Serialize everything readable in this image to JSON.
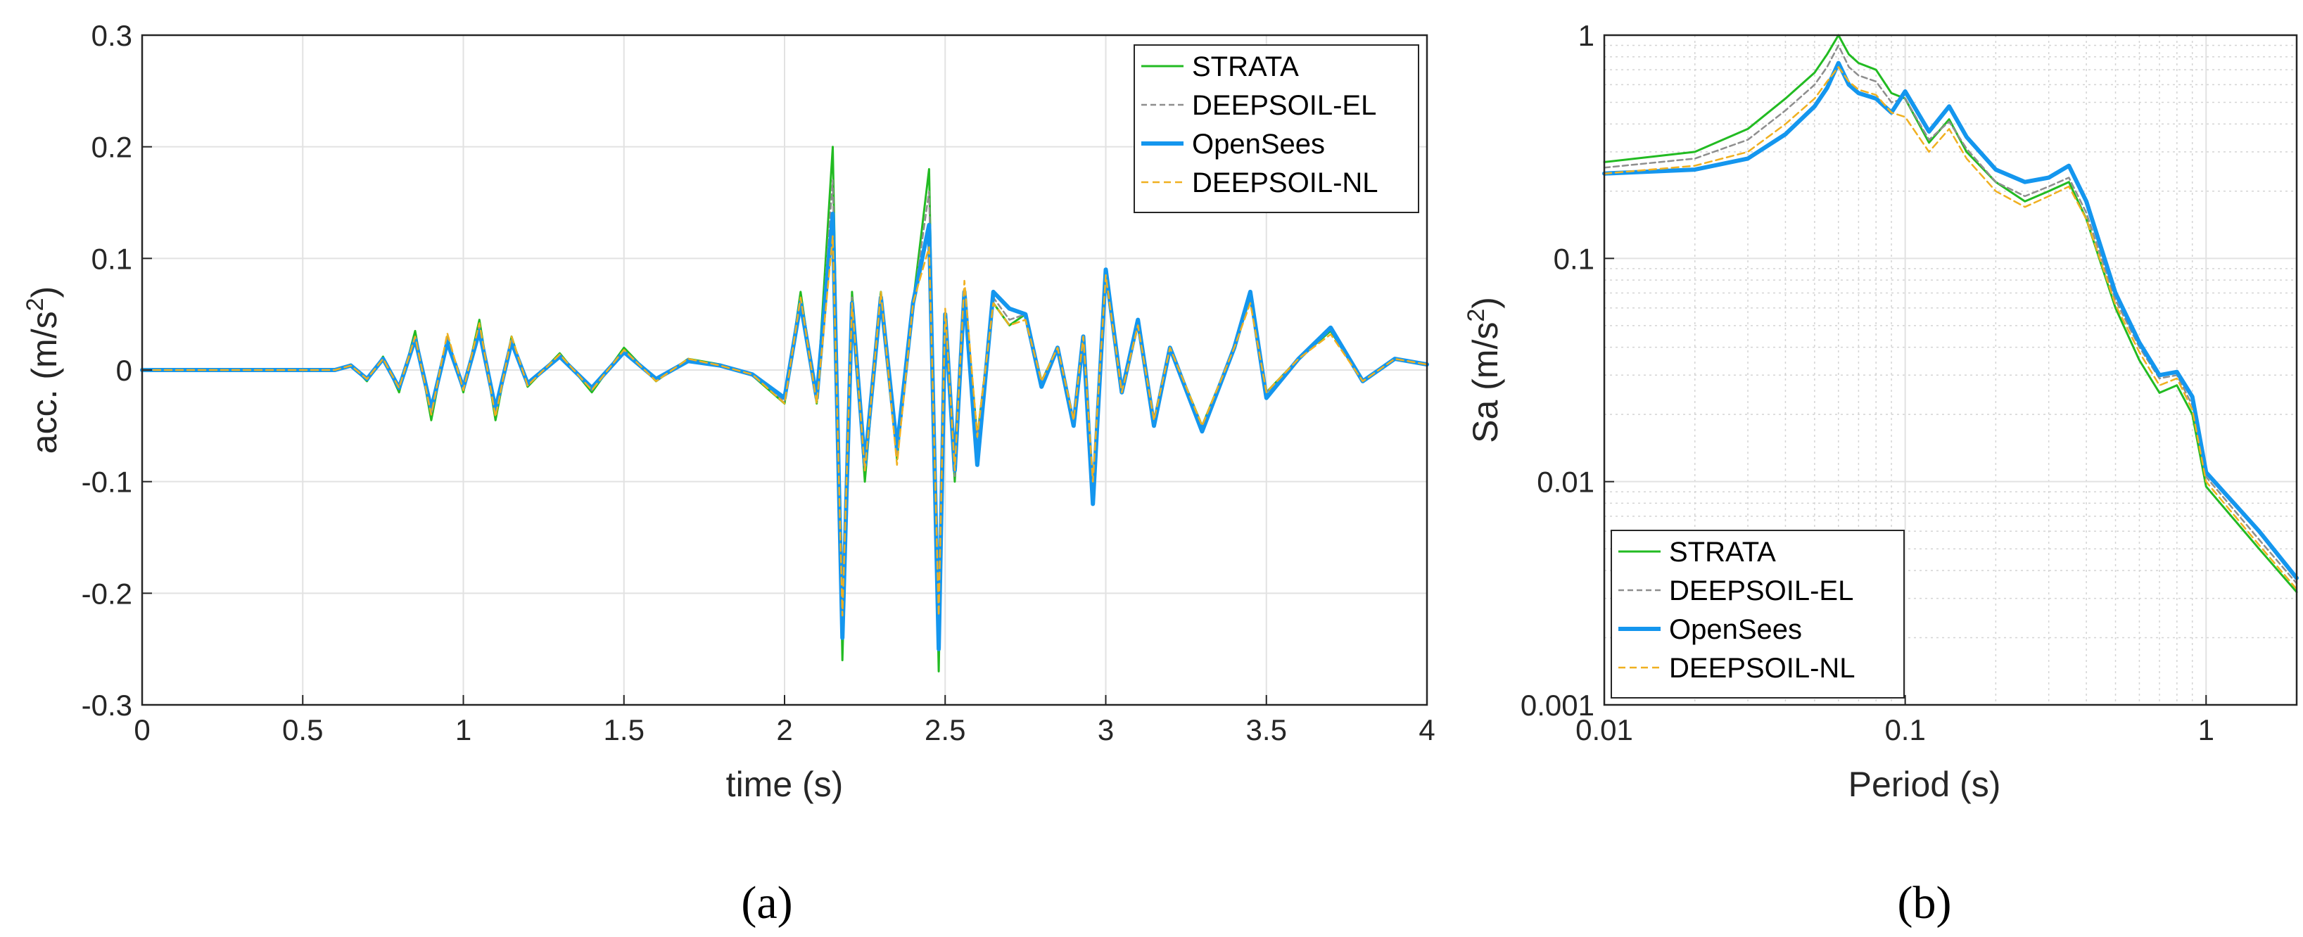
{
  "colors": {
    "STRATA": "#22bb22",
    "DEEPSOIL-EL": "#8e8e8e",
    "OpenSees": "#1496ee",
    "DEEPSOIL-NL": "#f0b020"
  },
  "captions": {
    "a": "(a)",
    "b": "(b)"
  },
  "chart_data": [
    {
      "id": "a",
      "type": "line",
      "title": "",
      "xlabel": "time (s)",
      "ylabel_prefix": "acc. (m/s",
      "ylabel_sup": "2",
      "ylabel_suffix": ")",
      "xlim": [
        0,
        4
      ],
      "ylim": [
        -0.3,
        0.3
      ],
      "xticks": [
        0,
        0.5,
        1,
        1.5,
        2,
        2.5,
        3,
        3.5,
        4
      ],
      "xtick_labels": [
        "0",
        "0.5",
        "1",
        "1.5",
        "2",
        "2.5",
        "3",
        "3.5",
        "4"
      ],
      "yticks": [
        0.3,
        0.2,
        0.1,
        0,
        -0.1,
        -0.2,
        -0.3
      ],
      "ytick_labels": [
        "0.3",
        "0.2",
        "0.1",
        "0",
        "-0.1",
        "-0.2",
        "-0.3"
      ],
      "grid": true,
      "legend_position": "top-right",
      "legend": [
        "STRATA",
        "DEEPSOIL-EL",
        "OpenSees",
        "DEEPSOIL-NL"
      ],
      "series": [
        {
          "name": "STRATA",
          "x": [
            0,
            0.6,
            0.65,
            0.7,
            0.75,
            0.8,
            0.85,
            0.9,
            0.95,
            1.0,
            1.05,
            1.1,
            1.15,
            1.2,
            1.3,
            1.4,
            1.5,
            1.6,
            1.7,
            1.8,
            1.9,
            2.0,
            2.05,
            2.1,
            2.15,
            2.18,
            2.21,
            2.25,
            2.3,
            2.35,
            2.4,
            2.45,
            2.48,
            2.5,
            2.53,
            2.56,
            2.6,
            2.65,
            2.7,
            2.75,
            2.8,
            2.85,
            2.9,
            2.93,
            2.96,
            3.0,
            3.05,
            3.1,
            3.15,
            3.2,
            3.3,
            3.4,
            3.45,
            3.5,
            3.6,
            3.7,
            3.8,
            3.9,
            4.0
          ],
          "values": [
            0,
            0,
            0.005,
            -0.01,
            0.012,
            -0.02,
            0.035,
            -0.045,
            0.03,
            -0.02,
            0.045,
            -0.045,
            0.03,
            -0.015,
            0.015,
            -0.02,
            0.02,
            -0.01,
            0.01,
            0.005,
            -0.005,
            -0.03,
            0.07,
            -0.03,
            0.2,
            -0.26,
            0.07,
            -0.1,
            0.07,
            -0.08,
            0.06,
            0.18,
            -0.27,
            0.05,
            -0.1,
            0.07,
            -0.06,
            0.06,
            0.04,
            0.05,
            -0.01,
            0.02,
            -0.05,
            0.03,
            -0.11,
            0.09,
            -0.02,
            0.04,
            -0.05,
            0.02,
            -0.05,
            0.02,
            0.065,
            -0.02,
            0.01,
            0.035,
            -0.01,
            0.01,
            0.005
          ]
        },
        {
          "name": "DEEPSOIL-EL",
          "x": [
            0,
            0.6,
            0.65,
            0.7,
            0.75,
            0.8,
            0.85,
            0.9,
            0.95,
            1.0,
            1.05,
            1.1,
            1.15,
            1.2,
            1.3,
            1.4,
            1.5,
            1.6,
            1.7,
            1.8,
            1.9,
            2.0,
            2.05,
            2.1,
            2.15,
            2.18,
            2.21,
            2.25,
            2.3,
            2.35,
            2.4,
            2.45,
            2.48,
            2.5,
            2.53,
            2.56,
            2.6,
            2.65,
            2.7,
            2.75,
            2.8,
            2.85,
            2.9,
            2.93,
            2.96,
            3.0,
            3.05,
            3.1,
            3.15,
            3.2,
            3.3,
            3.4,
            3.45,
            3.5,
            3.6,
            3.7,
            3.8,
            3.9,
            4.0
          ],
          "values": [
            0,
            0,
            0.004,
            -0.008,
            0.01,
            -0.018,
            0.03,
            -0.04,
            0.028,
            -0.018,
            0.04,
            -0.04,
            0.028,
            -0.014,
            0.014,
            -0.018,
            0.018,
            -0.01,
            0.01,
            0.004,
            -0.004,
            -0.028,
            0.065,
            -0.028,
            0.17,
            -0.24,
            0.065,
            -0.09,
            0.068,
            -0.075,
            0.058,
            0.16,
            -0.24,
            0.05,
            -0.095,
            0.068,
            -0.06,
            0.065,
            0.045,
            0.05,
            -0.01,
            0.02,
            -0.05,
            0.03,
            -0.115,
            0.088,
            -0.02,
            0.04,
            -0.05,
            0.02,
            -0.05,
            0.02,
            0.066,
            -0.02,
            0.01,
            0.036,
            -0.01,
            0.01,
            0.005
          ]
        },
        {
          "name": "OpenSees",
          "x": [
            0,
            0.6,
            0.65,
            0.7,
            0.75,
            0.8,
            0.85,
            0.9,
            0.95,
            1.0,
            1.05,
            1.1,
            1.15,
            1.2,
            1.3,
            1.4,
            1.5,
            1.6,
            1.7,
            1.8,
            1.9,
            2.0,
            2.05,
            2.1,
            2.15,
            2.18,
            2.21,
            2.25,
            2.3,
            2.35,
            2.4,
            2.45,
            2.48,
            2.5,
            2.53,
            2.56,
            2.6,
            2.65,
            2.7,
            2.75,
            2.8,
            2.85,
            2.9,
            2.93,
            2.96,
            3.0,
            3.05,
            3.1,
            3.15,
            3.2,
            3.3,
            3.4,
            3.45,
            3.5,
            3.6,
            3.7,
            3.8,
            3.9,
            4.0
          ],
          "values": [
            0,
            0,
            0.004,
            -0.008,
            0.01,
            -0.016,
            0.028,
            -0.035,
            0.025,
            -0.016,
            0.035,
            -0.035,
            0.025,
            -0.012,
            0.012,
            -0.016,
            0.016,
            -0.008,
            0.008,
            0.004,
            -0.004,
            -0.025,
            0.06,
            -0.025,
            0.14,
            -0.24,
            0.06,
            -0.085,
            0.065,
            -0.07,
            0.06,
            0.13,
            -0.25,
            0.05,
            -0.09,
            0.07,
            -0.085,
            0.07,
            0.055,
            0.05,
            -0.015,
            0.02,
            -0.05,
            0.03,
            -0.12,
            0.09,
            -0.02,
            0.045,
            -0.05,
            0.02,
            -0.055,
            0.02,
            0.07,
            -0.025,
            0.01,
            0.038,
            -0.01,
            0.01,
            0.005
          ]
        },
        {
          "name": "DEEPSOIL-NL",
          "x": [
            0,
            0.6,
            0.65,
            0.7,
            0.75,
            0.8,
            0.85,
            0.9,
            0.95,
            1.0,
            1.05,
            1.1,
            1.15,
            1.2,
            1.3,
            1.4,
            1.5,
            1.6,
            1.7,
            1.8,
            1.9,
            2.0,
            2.05,
            2.1,
            2.15,
            2.18,
            2.21,
            2.25,
            2.3,
            2.35,
            2.4,
            2.45,
            2.48,
            2.5,
            2.53,
            2.56,
            2.6,
            2.65,
            2.7,
            2.75,
            2.8,
            2.85,
            2.9,
            2.93,
            2.96,
            3.0,
            3.05,
            3.1,
            3.15,
            3.2,
            3.3,
            3.4,
            3.45,
            3.5,
            3.6,
            3.7,
            3.8,
            3.9,
            4.0
          ],
          "values": [
            0,
            0,
            0.004,
            -0.008,
            0.01,
            -0.016,
            0.03,
            -0.04,
            0.033,
            -0.018,
            0.042,
            -0.042,
            0.03,
            -0.014,
            0.014,
            -0.018,
            0.018,
            -0.01,
            0.01,
            0.004,
            -0.004,
            -0.03,
            0.065,
            -0.03,
            0.12,
            -0.22,
            0.06,
            -0.09,
            0.07,
            -0.085,
            0.06,
            0.11,
            -0.22,
            0.055,
            -0.09,
            0.08,
            -0.06,
            0.06,
            0.04,
            0.045,
            -0.01,
            0.02,
            -0.045,
            0.03,
            -0.1,
            0.085,
            -0.02,
            0.04,
            -0.045,
            0.02,
            -0.05,
            0.02,
            0.06,
            -0.02,
            0.01,
            0.032,
            -0.01,
            0.01,
            0.005
          ]
        }
      ]
    },
    {
      "id": "b",
      "type": "line",
      "title": "",
      "xlabel": "Period (s)",
      "ylabel_prefix": "Sa (m/s",
      "ylabel_sup": "2",
      "ylabel_suffix": ")",
      "xscale": "log",
      "yscale": "log",
      "xlim": [
        0.01,
        2
      ],
      "ylim": [
        0.001,
        1
      ],
      "xticks": [
        0.01,
        0.1,
        1
      ],
      "xtick_labels": [
        "0.01",
        "0.1",
        "1"
      ],
      "yticks": [
        1,
        0.1,
        0.01,
        0.001
      ],
      "ytick_labels": [
        "1",
        "0.1",
        "0.01",
        "0.001"
      ],
      "grid": true,
      "legend_position": "bottom-left",
      "legend": [
        "STRATA",
        "DEEPSOIL-EL",
        "OpenSees",
        "DEEPSOIL-NL"
      ],
      "series": [
        {
          "name": "STRATA",
          "x": [
            0.01,
            0.02,
            0.03,
            0.04,
            0.05,
            0.055,
            0.06,
            0.065,
            0.07,
            0.08,
            0.09,
            0.1,
            0.12,
            0.14,
            0.16,
            0.2,
            0.25,
            0.3,
            0.35,
            0.4,
            0.5,
            0.6,
            0.7,
            0.8,
            0.9,
            1.0,
            1.5,
            2.0
          ],
          "values": [
            0.27,
            0.3,
            0.38,
            0.52,
            0.68,
            0.82,
            1.0,
            0.82,
            0.75,
            0.7,
            0.55,
            0.52,
            0.33,
            0.42,
            0.3,
            0.22,
            0.18,
            0.2,
            0.22,
            0.15,
            0.06,
            0.035,
            0.025,
            0.027,
            0.02,
            0.0095,
            0.005,
            0.0032
          ]
        },
        {
          "name": "DEEPSOIL-EL",
          "x": [
            0.01,
            0.02,
            0.03,
            0.04,
            0.05,
            0.055,
            0.06,
            0.065,
            0.07,
            0.08,
            0.09,
            0.1,
            0.12,
            0.14,
            0.16,
            0.2,
            0.25,
            0.3,
            0.35,
            0.4,
            0.5,
            0.6,
            0.7,
            0.8,
            0.9,
            1.0,
            1.5,
            2.0
          ],
          "values": [
            0.255,
            0.28,
            0.34,
            0.46,
            0.6,
            0.72,
            0.9,
            0.72,
            0.66,
            0.62,
            0.5,
            0.52,
            0.34,
            0.41,
            0.31,
            0.22,
            0.19,
            0.21,
            0.23,
            0.16,
            0.065,
            0.04,
            0.029,
            0.03,
            0.022,
            0.0105,
            0.0055,
            0.0035
          ]
        },
        {
          "name": "OpenSees",
          "x": [
            0.01,
            0.02,
            0.03,
            0.04,
            0.05,
            0.055,
            0.06,
            0.065,
            0.07,
            0.08,
            0.09,
            0.1,
            0.12,
            0.14,
            0.16,
            0.2,
            0.25,
            0.3,
            0.35,
            0.4,
            0.5,
            0.6,
            0.7,
            0.8,
            0.9,
            1.0,
            1.5,
            2.0
          ],
          "values": [
            0.24,
            0.25,
            0.28,
            0.36,
            0.48,
            0.58,
            0.75,
            0.6,
            0.55,
            0.52,
            0.45,
            0.56,
            0.37,
            0.48,
            0.35,
            0.25,
            0.22,
            0.23,
            0.26,
            0.18,
            0.07,
            0.042,
            0.03,
            0.031,
            0.024,
            0.011,
            0.006,
            0.0037
          ]
        },
        {
          "name": "DEEPSOIL-NL",
          "x": [
            0.01,
            0.02,
            0.03,
            0.04,
            0.05,
            0.055,
            0.06,
            0.065,
            0.07,
            0.08,
            0.09,
            0.1,
            0.12,
            0.14,
            0.16,
            0.2,
            0.25,
            0.3,
            0.35,
            0.4,
            0.5,
            0.6,
            0.7,
            0.8,
            0.9,
            1.0,
            1.5,
            2.0
          ],
          "values": [
            0.24,
            0.26,
            0.3,
            0.4,
            0.52,
            0.62,
            0.72,
            0.62,
            0.57,
            0.54,
            0.45,
            0.43,
            0.3,
            0.38,
            0.28,
            0.2,
            0.17,
            0.19,
            0.21,
            0.15,
            0.062,
            0.038,
            0.027,
            0.029,
            0.021,
            0.01,
            0.0052,
            0.0033
          ]
        }
      ]
    }
  ]
}
